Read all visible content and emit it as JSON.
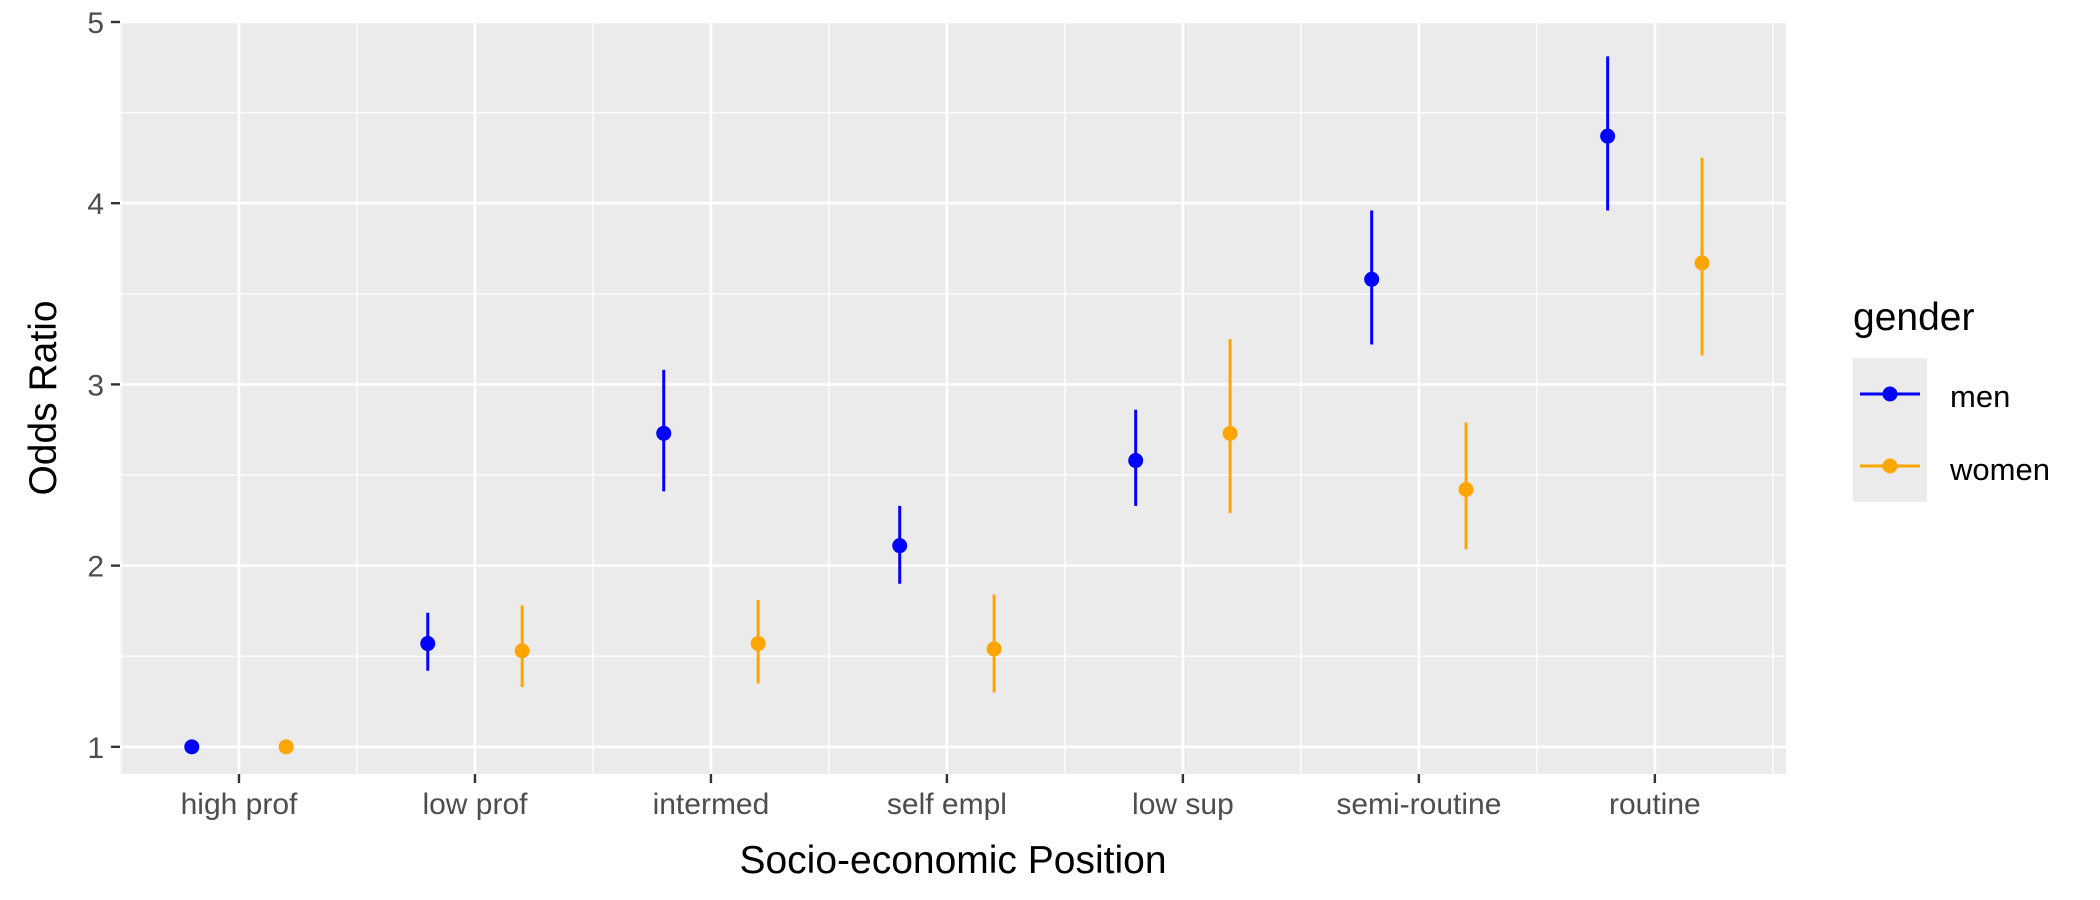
{
  "chart_data": {
    "type": "scatter",
    "title": "",
    "xlabel": "Socio-economic Position",
    "ylabel": "Odds Ratio",
    "ylim": [
      0.85,
      5.0
    ],
    "yticks": [
      1,
      2,
      3,
      4,
      5
    ],
    "grid": true,
    "categories": [
      "high prof",
      "low prof",
      "intermed",
      "self empl",
      "low sup",
      "semi-routine",
      "routine"
    ],
    "legend": {
      "title": "gender",
      "placement": "right"
    },
    "series": [
      {
        "name": "men",
        "color": "#0000ff",
        "values": [
          1.0,
          1.57,
          2.73,
          2.11,
          2.58,
          3.58,
          4.37
        ],
        "lower": [
          1.0,
          1.42,
          2.41,
          1.9,
          2.33,
          3.22,
          3.96
        ],
        "upper": [
          1.0,
          1.74,
          3.08,
          2.33,
          2.86,
          3.96,
          4.81
        ]
      },
      {
        "name": "women",
        "color": "#ffa500",
        "values": [
          1.0,
          1.53,
          1.57,
          1.54,
          2.73,
          2.42,
          3.67
        ],
        "lower": [
          1.0,
          1.33,
          1.35,
          1.3,
          2.29,
          2.09,
          3.16
        ],
        "upper": [
          1.0,
          1.78,
          1.81,
          1.84,
          3.25,
          2.79,
          4.25
        ]
      }
    ]
  }
}
